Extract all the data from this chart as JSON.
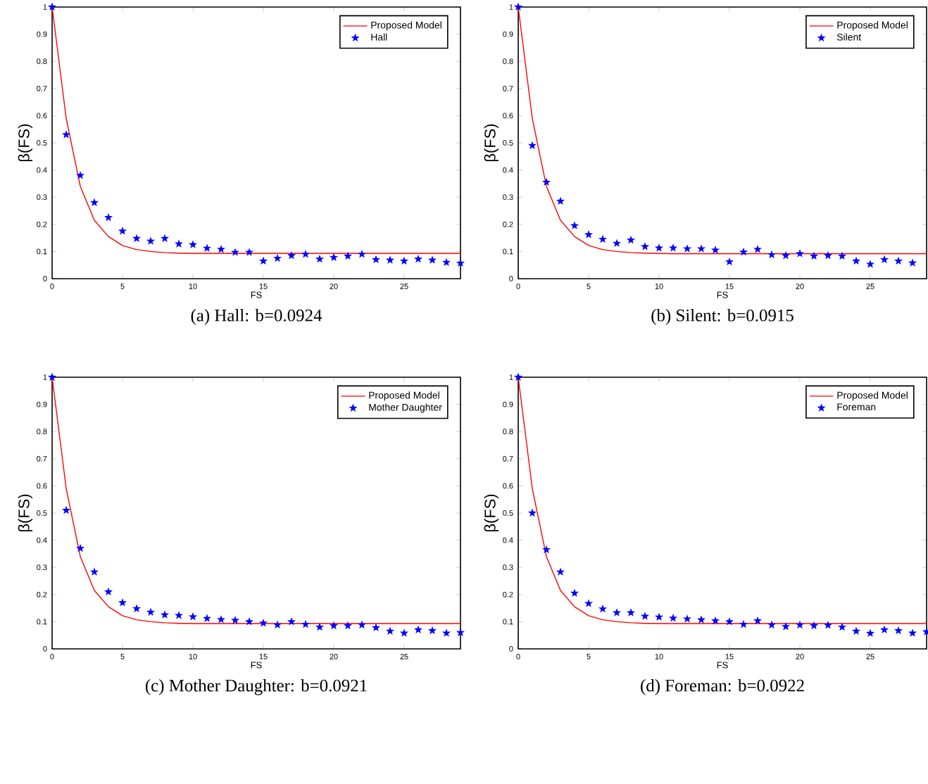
{
  "chart_data": [
    {
      "type": "scatter",
      "title": "(a) Hall: b=0.0924",
      "xlabel": "FS",
      "ylabel": "β(FS)",
      "x": [
        0,
        1,
        2,
        3,
        4,
        5,
        6,
        7,
        8,
        9,
        10,
        11,
        12,
        13,
        14,
        15,
        16,
        17,
        18,
        19,
        20,
        21,
        22,
        23,
        24,
        25,
        26,
        27,
        28,
        29
      ],
      "xlim": [
        0,
        29
      ],
      "ylim": [
        0,
        1
      ],
      "xticks": [
        0,
        5,
        10,
        15,
        20,
        25
      ],
      "yticks": [
        0,
        0.1,
        0.2,
        0.3,
        0.4,
        0.5,
        0.6,
        0.7,
        0.8,
        0.9,
        1
      ],
      "legend": "top right",
      "series": [
        {
          "name": "Proposed Model",
          "type": "line",
          "marker": "none",
          "color": "#ff0000",
          "values": [
            1,
            0.59,
            0.34,
            0.215,
            0.155,
            0.122,
            0.107,
            0.1,
            0.096,
            0.094,
            0.093,
            0.093,
            0.093,
            0.093,
            0.093,
            0.093,
            0.093,
            0.093,
            0.093,
            0.093,
            0.093,
            0.093,
            0.093,
            0.093,
            0.093,
            0.093,
            0.093,
            0.093,
            0.093,
            0.093
          ]
        },
        {
          "name": "Hall",
          "marker": "star",
          "color": "#0000ff",
          "values": [
            1,
            0.53,
            0.38,
            0.28,
            0.225,
            0.175,
            0.148,
            0.138,
            0.148,
            0.128,
            0.125,
            0.112,
            0.108,
            0.097,
            0.097,
            0.065,
            0.075,
            0.085,
            0.09,
            0.072,
            0.078,
            0.083,
            0.09,
            0.07,
            0.068,
            0.065,
            0.072,
            0.068,
            0.06,
            0.057
          ]
        }
      ]
    },
    {
      "type": "scatter",
      "title": "(b) Silent: b=0.0915",
      "xlabel": "FS",
      "ylabel": "β(FS)",
      "x": [
        0,
        1,
        2,
        3,
        4,
        5,
        6,
        7,
        8,
        9,
        10,
        11,
        12,
        13,
        14,
        15,
        16,
        17,
        18,
        19,
        20,
        21,
        22,
        23,
        24,
        25,
        26,
        27,
        28,
        29
      ],
      "xlim": [
        0,
        29
      ],
      "ylim": [
        0,
        1
      ],
      "xticks": [
        0,
        5,
        10,
        15,
        20,
        25
      ],
      "yticks": [
        0,
        0.1,
        0.2,
        0.3,
        0.4,
        0.5,
        0.6,
        0.7,
        0.8,
        0.9,
        1
      ],
      "legend": "top right",
      "series": [
        {
          "name": "Proposed Model",
          "type": "line",
          "marker": "none",
          "color": "#ff0000",
          "values": [
            1,
            0.59,
            0.34,
            0.215,
            0.155,
            0.122,
            0.107,
            0.1,
            0.096,
            0.094,
            0.093,
            0.092,
            0.092,
            0.092,
            0.092,
            0.092,
            0.092,
            0.092,
            0.092,
            0.092,
            0.092,
            0.092,
            0.092,
            0.092,
            0.092,
            0.092,
            0.092,
            0.092,
            0.092,
            0.092
          ]
        },
        {
          "name": "Silent",
          "marker": "star",
          "color": "#0000ff",
          "values": [
            1,
            0.49,
            0.355,
            0.285,
            0.195,
            0.162,
            0.145,
            0.13,
            0.142,
            0.118,
            0.113,
            0.113,
            0.11,
            0.11,
            0.105,
            0.062,
            0.098,
            0.108,
            0.088,
            0.085,
            0.092,
            0.083,
            0.085,
            0.083,
            0.065,
            0.053,
            0.07,
            0.065,
            0.058,
            null
          ]
        }
      ]
    },
    {
      "type": "scatter",
      "title": "(c) Mother Daughter: b=0.0921",
      "xlabel": "FS",
      "ylabel": "β(FS)",
      "x": [
        0,
        1,
        2,
        3,
        4,
        5,
        6,
        7,
        8,
        9,
        10,
        11,
        12,
        13,
        14,
        15,
        16,
        17,
        18,
        19,
        20,
        21,
        22,
        23,
        24,
        25,
        26,
        27,
        28,
        29
      ],
      "xlim": [
        0,
        29
      ],
      "ylim": [
        0,
        1
      ],
      "xticks": [
        0,
        5,
        10,
        15,
        20,
        25
      ],
      "yticks": [
        0,
        0.1,
        0.2,
        0.3,
        0.4,
        0.5,
        0.6,
        0.7,
        0.8,
        0.9,
        1
      ],
      "legend": "top right",
      "series": [
        {
          "name": "Proposed Model",
          "type": "line",
          "marker": "none",
          "color": "#ff0000",
          "values": [
            1,
            0.59,
            0.34,
            0.215,
            0.155,
            0.122,
            0.107,
            0.1,
            0.096,
            0.094,
            0.093,
            0.093,
            0.093,
            0.093,
            0.093,
            0.093,
            0.093,
            0.093,
            0.093,
            0.093,
            0.093,
            0.093,
            0.093,
            0.093,
            0.093,
            0.093,
            0.093,
            0.093,
            0.093,
            0.093
          ]
        },
        {
          "name": "Mother Daughter",
          "marker": "star",
          "color": "#0000ff",
          "values": [
            1,
            0.51,
            0.37,
            0.283,
            0.21,
            0.17,
            0.148,
            0.135,
            0.125,
            0.123,
            0.118,
            0.112,
            0.108,
            0.105,
            0.1,
            0.095,
            0.088,
            0.1,
            0.09,
            0.08,
            0.085,
            0.085,
            0.088,
            0.078,
            0.065,
            0.058,
            0.07,
            0.067,
            0.058,
            0.06
          ]
        }
      ]
    },
    {
      "type": "scatter",
      "title": "(d) Foreman: b=0.0922",
      "xlabel": "FS",
      "ylabel": "β(FS)",
      "x": [
        0,
        1,
        2,
        3,
        4,
        5,
        6,
        7,
        8,
        9,
        10,
        11,
        12,
        13,
        14,
        15,
        16,
        17,
        18,
        19,
        20,
        21,
        22,
        23,
        24,
        25,
        26,
        27,
        28,
        29
      ],
      "xlim": [
        0,
        29
      ],
      "ylim": [
        0,
        1
      ],
      "xticks": [
        0,
        5,
        10,
        15,
        20,
        25
      ],
      "yticks": [
        0,
        0.1,
        0.2,
        0.3,
        0.4,
        0.5,
        0.6,
        0.7,
        0.8,
        0.9,
        1
      ],
      "legend": "top right",
      "series": [
        {
          "name": "Proposed Model",
          "type": "line",
          "marker": "none",
          "color": "#ff0000",
          "values": [
            1,
            0.59,
            0.34,
            0.215,
            0.155,
            0.122,
            0.107,
            0.1,
            0.096,
            0.094,
            0.093,
            0.093,
            0.093,
            0.093,
            0.093,
            0.093,
            0.093,
            0.093,
            0.093,
            0.093,
            0.093,
            0.093,
            0.093,
            0.093,
            0.093,
            0.093,
            0.093,
            0.093,
            0.093,
            0.093
          ]
        },
        {
          "name": "Foreman",
          "marker": "star",
          "color": "#0000ff",
          "values": [
            1,
            0.5,
            0.365,
            0.283,
            0.205,
            0.167,
            0.147,
            0.133,
            0.133,
            0.12,
            0.117,
            0.113,
            0.11,
            0.107,
            0.103,
            0.1,
            0.09,
            0.103,
            0.088,
            0.082,
            0.088,
            0.085,
            0.087,
            0.08,
            0.065,
            0.057,
            0.07,
            0.067,
            0.058,
            0.063
          ]
        }
      ]
    }
  ]
}
